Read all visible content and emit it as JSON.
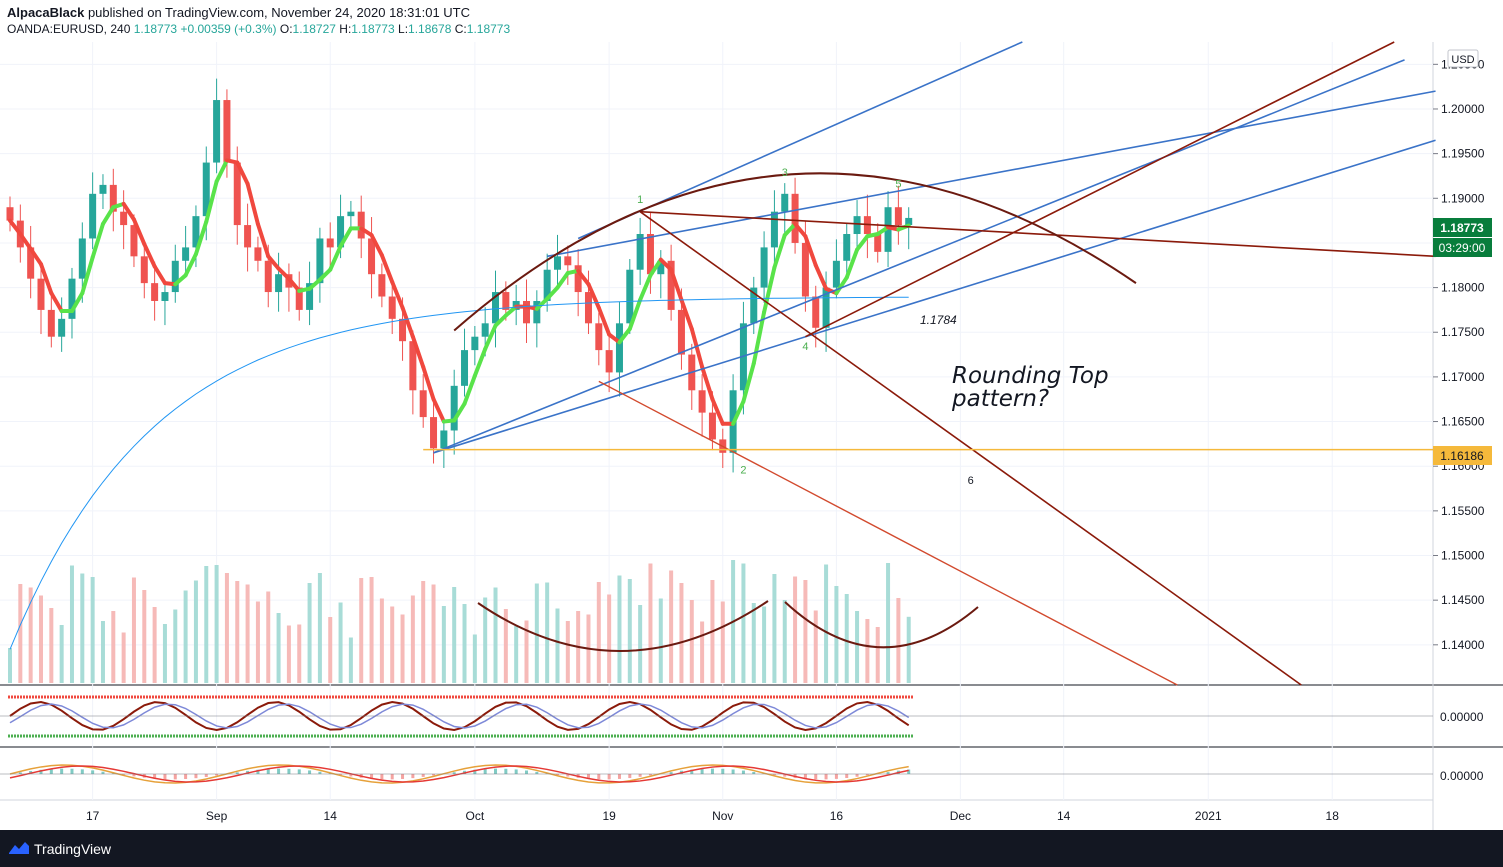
{
  "header": {
    "author": "AlpacaBlack",
    "published_text": "published on TradingView.com, November 24, 2020 18:31:01 UTC",
    "symbol": "OANDA:EURUSD, 240",
    "last": "1.18773",
    "change": "+0.00359 (+0.3%)",
    "o_label": "O:",
    "o_value": "1.18727",
    "h_label": "H:",
    "h_value": "1.18773",
    "l_label": "L:",
    "l_value": "1.18678",
    "c_label": "C:",
    "c_value": "1.18773"
  },
  "footer": {
    "brand": "TradingView"
  },
  "chart_data": {
    "type": "candlestick",
    "currency": "USD",
    "ylim": [
      1.1355,
      1.2075
    ],
    "price_ticks": [
      "1.20500",
      "1.20000",
      "1.19500",
      "1.19000",
      "1.18500",
      "1.18000",
      "1.17500",
      "1.17000",
      "1.16500",
      "1.16000",
      "1.15500",
      "1.15000",
      "1.14500",
      "1.14000"
    ],
    "price_tick_values": [
      1.205,
      1.2,
      1.195,
      1.19,
      1.185,
      1.18,
      1.175,
      1.17,
      1.165,
      1.16,
      1.155,
      1.15,
      1.145,
      1.14
    ],
    "x_ticks": [
      "17",
      "Sep",
      "14",
      "Oct",
      "19",
      "Nov",
      "16",
      "Dec",
      "14",
      "2021",
      "18"
    ],
    "x_tick_index": [
      8,
      20,
      31,
      45,
      58,
      69,
      80,
      92,
      102,
      116,
      128
    ],
    "current_price_label": "1.18773",
    "current_price": 1.18773,
    "countdown_label": "03:29:00",
    "support_price_label": "1.16186",
    "support_price": 1.16186,
    "annotation_title": "Rounding Top",
    "annotation_subtitle": "pattern?",
    "price_callout": "1.1784",
    "wave_labels": [
      {
        "text": "1",
        "i": 61,
        "p": 1.1895
      },
      {
        "text": "2",
        "i": 71,
        "p": 1.1592
      },
      {
        "text": "3",
        "i": 75,
        "p": 1.1925
      },
      {
        "text": "4",
        "i": 77,
        "p": 1.173
      },
      {
        "text": "5",
        "i": 86,
        "p": 1.1912
      },
      {
        "text": "6",
        "i": 93,
        "p": 1.158
      }
    ],
    "close_series": [
      1.1875,
      1.1845,
      1.181,
      1.1775,
      1.1745,
      1.1765,
      1.181,
      1.1855,
      1.1905,
      1.1915,
      1.1885,
      1.187,
      1.1835,
      1.1805,
      1.1785,
      1.1795,
      1.183,
      1.1845,
      1.188,
      1.194,
      1.201,
      1.194,
      1.187,
      1.1845,
      1.183,
      1.1795,
      1.1815,
      1.18,
      1.1775,
      1.1805,
      1.1855,
      1.1845,
      1.188,
      1.1885,
      1.1855,
      1.1815,
      1.179,
      1.1765,
      1.174,
      1.1685,
      1.1655,
      1.162,
      1.164,
      1.169,
      1.173,
      1.1745,
      1.176,
      1.1795,
      1.1775,
      1.1785,
      1.176,
      1.1785,
      1.182,
      1.1835,
      1.1825,
      1.1795,
      1.176,
      1.173,
      1.1705,
      1.176,
      1.182,
      1.186,
      1.1815,
      1.183,
      1.1775,
      1.1725,
      1.1685,
      1.166,
      1.163,
      1.1615,
      1.1685,
      1.176,
      1.18,
      1.1845,
      1.1885,
      1.1905,
      1.185,
      1.179,
      1.1755,
      1.18,
      1.183,
      1.186,
      1.188,
      1.186,
      1.184,
      1.189,
      1.187,
      1.1878
    ],
    "ma_fast_color": "#4caf50",
    "ma_slow_color": "#e64a4a",
    "ma_long_color": "#2196f3",
    "up_color": "#26a69a",
    "down_color": "#ef5350",
    "trendline_blue": "#3a73c8",
    "trendline_darkred": "#8b1a0a",
    "arc_color": "#6b1a10",
    "support_color": "#f5b93b",
    "osc1_label": "0.00000",
    "osc2_label": "0.00000"
  }
}
